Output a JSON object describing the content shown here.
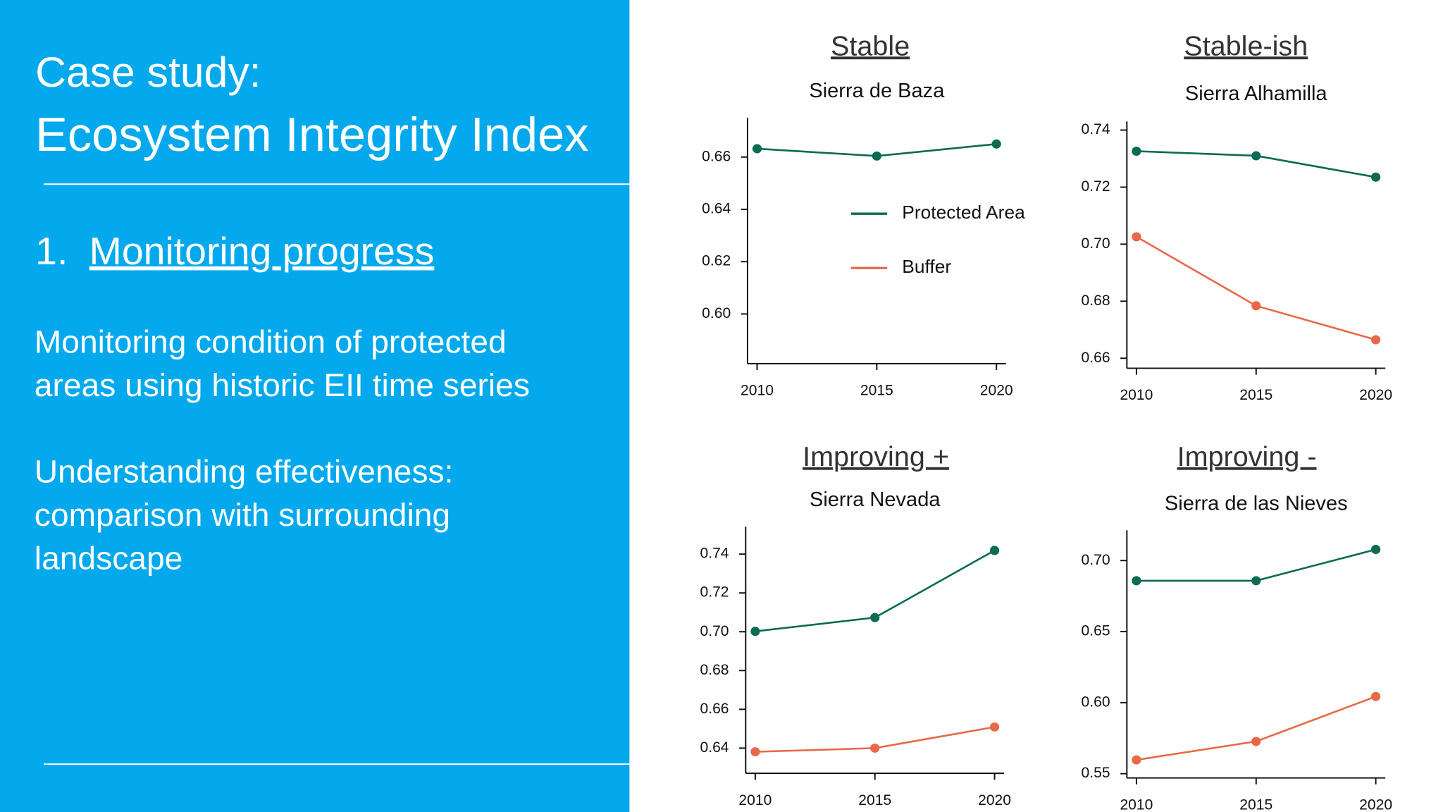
{
  "slide": {
    "title_lines": [
      "Case study:",
      "Ecosystem Integrity Index"
    ],
    "section_number": "1.",
    "section_title": "Monitoring progress",
    "paragraphs": [
      [
        "Monitoring condition of protected",
        "areas using historic EII time series"
      ],
      [
        "Understanding effectiveness:",
        "comparison with surrounding",
        "landscape"
      ]
    ]
  },
  "chart_data": [
    {
      "type": "line",
      "heading": "Stable",
      "title": "Sierra de Baza",
      "x": [
        2010,
        2015,
        2020
      ],
      "xlim": [
        2009.6,
        2020.4
      ],
      "xticks": [
        2010,
        2015,
        2020
      ],
      "ylim": [
        0.581,
        0.675
      ],
      "yticks": [
        {
          "value": 0.6,
          "label": "0.60"
        },
        0.62,
        0.64,
        0.66
      ],
      "legend": "center right",
      "series": [
        {
          "name": "Protected Area",
          "color": "#0b6b53",
          "values": [
            0.6632,
            0.6604,
            0.665
          ]
        },
        {
          "name": "Buffer",
          "color": "#e8694a",
          "values": [
            null,
            null,
            null
          ]
        }
      ]
    },
    {
      "type": "line",
      "heading": "Stable-ish",
      "title": "Sierra Alhamilla",
      "x": [
        2010,
        2015,
        2020
      ],
      "xlim": [
        2009.6,
        2020.4
      ],
      "xticks": [
        2010,
        2015,
        2020
      ],
      "ylim": [
        0.6565,
        0.743
      ],
      "yticks": [
        0.66,
        0.68,
        {
          "value": 0.7,
          "label": "0.70"
        },
        0.72,
        0.74
      ],
      "series": [
        {
          "name": "Protected Area",
          "color": "#0b6b53",
          "values": [
            0.7326,
            0.731,
            0.7235
          ]
        },
        {
          "name": "Buffer",
          "color": "#e8694a",
          "values": [
            0.7026,
            0.6784,
            0.6665
          ]
        }
      ]
    },
    {
      "type": "line",
      "heading": "Improving +",
      "title": "Sierra Nevada",
      "x": [
        2010,
        2015,
        2020
      ],
      "xlim": [
        2009.6,
        2020.4
      ],
      "xticks": [
        2010,
        2015,
        2020
      ],
      "ylim": [
        0.627,
        0.7542
      ],
      "yticks": [
        0.64,
        0.66,
        0.68,
        {
          "value": 0.7,
          "label": "0.70"
        },
        0.72,
        0.74
      ],
      "series": [
        {
          "name": "Protected Area",
          "color": "#0b6b53",
          "values": [
            0.7002,
            0.7073,
            0.7419
          ]
        },
        {
          "name": "Buffer",
          "color": "#e8694a",
          "values": [
            0.6381,
            0.64,
            0.6509
          ]
        }
      ]
    },
    {
      "type": "line",
      "heading": "Improving -",
      "title": "Sierra de las Nieves",
      "x": [
        2010,
        2015,
        2020
      ],
      "xlim": [
        2009.6,
        2020.4
      ],
      "xticks": [
        2010,
        2015,
        2020
      ],
      "ylim": [
        0.547,
        0.7213
      ],
      "yticks": [
        0.55,
        {
          "value": 0.6,
          "label": "0.60"
        },
        0.65,
        {
          "value": 0.7,
          "label": "0.70"
        }
      ],
      "series": [
        {
          "name": "Protected Area",
          "color": "#0b6b53",
          "values": [
            0.6858,
            0.6858,
            0.7078
          ]
        },
        {
          "name": "Buffer",
          "color": "#e8694a",
          "values": [
            0.5597,
            0.5727,
            0.6043
          ]
        }
      ]
    }
  ]
}
